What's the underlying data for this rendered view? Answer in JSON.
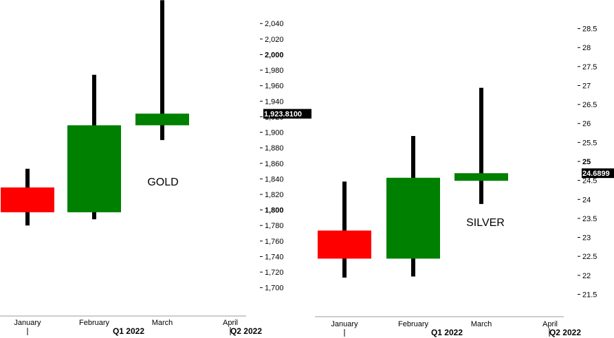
{
  "chart_data": [
    {
      "type": "candlestick",
      "annotation": "GOLD",
      "categories": [
        "January",
        "February",
        "March",
        "April"
      ],
      "quarter_labels": [
        "Q1 2022",
        "Q2 2022"
      ],
      "candles": [
        {
          "category": "January",
          "open": 1829,
          "high": 1853,
          "low": 1780,
          "close": 1797
        },
        {
          "category": "February",
          "open": 1797,
          "high": 1974,
          "low": 1788,
          "close": 1909
        },
        {
          "category": "March",
          "open": 1909,
          "high": 2070,
          "low": 1890,
          "close": 1924
        }
      ],
      "ylim": [
        1690,
        2057
      ],
      "y_ticks": [
        1700,
        1720,
        1740,
        1760,
        1780,
        1800,
        1820,
        1840,
        1860,
        1880,
        1900,
        1920,
        1940,
        1960,
        1980,
        2000,
        2020,
        2040
      ],
      "y_tick_labels": [
        "1,700",
        "1,720",
        "1,740",
        "1,760",
        "1,780",
        "1,800",
        "1,820",
        "1,840",
        "1,860",
        "1,880",
        "1,900",
        "1,920",
        "1,940",
        "1,960",
        "1,980",
        "2,000",
        "2,020",
        "2,040"
      ],
      "bold_ticks": [
        "1,800",
        "2,000"
      ],
      "last_price_label": "1,923.8100",
      "last_price": 1923.81,
      "colors": {
        "up": "#008000",
        "down": "#ff0000",
        "wick": "#000000"
      }
    },
    {
      "type": "candlestick",
      "annotation": "SILVER",
      "categories": [
        "January",
        "February",
        "March",
        "April"
      ],
      "quarter_labels": [
        "Q1 2022",
        "Q2 2022"
      ],
      "candles": [
        {
          "category": "January",
          "open": 23.18,
          "high": 24.47,
          "low": 21.94,
          "close": 22.44
        },
        {
          "category": "February",
          "open": 22.44,
          "high": 25.67,
          "low": 21.97,
          "close": 24.57
        },
        {
          "category": "March",
          "open": 24.49,
          "high": 26.94,
          "low": 23.88,
          "close": 24.69
        }
      ],
      "ylim": [
        21.2,
        28.8
      ],
      "y_ticks": [
        21.5,
        22,
        22.5,
        23,
        23.5,
        24,
        24.5,
        25,
        25.5,
        26,
        26.5,
        27,
        27.5,
        28,
        28.5
      ],
      "y_tick_labels": [
        "21.5",
        "22",
        "22.5",
        "23",
        "23.5",
        "24",
        "24.5",
        "25",
        "25.5",
        "26",
        "26.5",
        "27",
        "27.5",
        "28",
        "28.5"
      ],
      "bold_ticks": [
        "25"
      ],
      "last_price_label": "24.6899",
      "last_price": 24.6899,
      "colors": {
        "up": "#008000",
        "down": "#ff0000",
        "wick": "#000000"
      }
    }
  ]
}
